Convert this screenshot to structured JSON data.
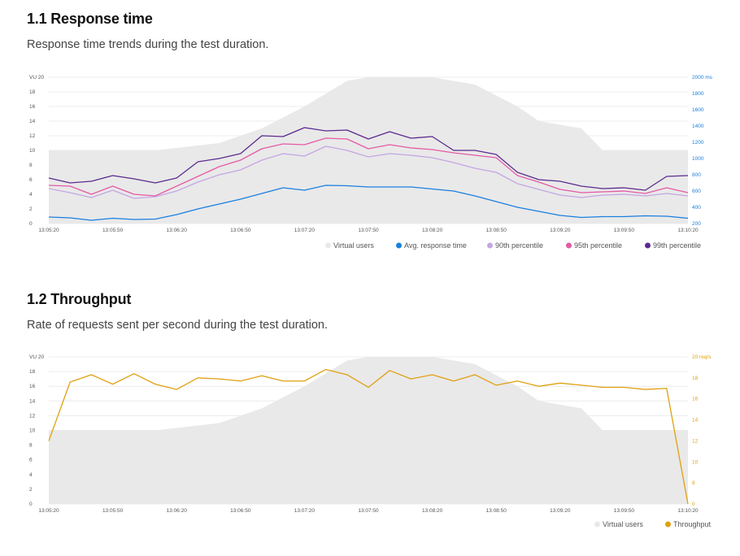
{
  "sections": [
    {
      "title": "1.1 Response time",
      "subtitle": "Response time trends during the test duration."
    },
    {
      "title": "1.2 Throughput",
      "subtitle": "Rate of requests sent per second during the test duration."
    }
  ],
  "colors": {
    "vus": "#e9e9e9",
    "grid": "#ececec",
    "avg": "#1a7fe0",
    "p90": "#c4a6e3",
    "p95": "#e45aa6",
    "p99": "#5b2a8e",
    "throughput": "#e0a010",
    "right_axis_rt": "#1a7fe0",
    "right_axis_tp": "#e0a010"
  },
  "chart_data": [
    {
      "type": "line",
      "x_ticks": [
        "13:05:20",
        "13:05:50",
        "13:06:20",
        "13:06:50",
        "13:07:20",
        "13:07:50",
        "13:08:20",
        "13:08:50",
        "13:09:20",
        "13:09:50",
        "13:10:20"
      ],
      "left_axis": {
        "ticks": [
          "0",
          "2",
          "4",
          "6",
          "8",
          "10",
          "12",
          "14",
          "16",
          "18",
          "VU 20"
        ],
        "ylim": [
          0,
          20
        ]
      },
      "right_axis": {
        "ticks": [
          "200",
          "400",
          "600",
          "800",
          "1000",
          "1200",
          "1400",
          "1600",
          "1800",
          "2000 ms"
        ],
        "ylim": [
          200,
          2000
        ]
      },
      "x_index_max": 30,
      "vus": {
        "name": "Virtual users",
        "x": [
          0,
          5,
          8,
          10,
          12,
          14,
          15,
          18,
          20,
          22,
          23,
          25,
          26,
          30
        ],
        "values": [
          10,
          10,
          11,
          13,
          16,
          19.5,
          20,
          20,
          19,
          16,
          14,
          13,
          10,
          10
        ]
      },
      "series": [
        {
          "name": "Avg. response time",
          "color_key": "avg",
          "values": [
            280,
            270,
            240,
            265,
            250,
            255,
            310,
            380,
            440,
            500,
            570,
            640,
            610,
            670,
            665,
            650,
            650,
            650,
            625,
            600,
            540,
            470,
            400,
            350,
            300,
            275,
            285,
            285,
            295,
            290,
            265
          ]
        },
        {
          "name": "90th percentile",
          "color_key": "p90",
          "values": [
            630,
            580,
            520,
            610,
            510,
            530,
            600,
            710,
            800,
            860,
            980,
            1060,
            1030,
            1150,
            1100,
            1020,
            1060,
            1040,
            1010,
            950,
            880,
            830,
            690,
            620,
            550,
            520,
            550,
            560,
            540,
            570,
            540
          ]
        },
        {
          "name": "95th percentile",
          "color_key": "p95",
          "values": [
            670,
            660,
            560,
            660,
            560,
            540,
            660,
            780,
            900,
            980,
            1120,
            1180,
            1170,
            1250,
            1240,
            1120,
            1170,
            1130,
            1110,
            1070,
            1040,
            1010,
            790,
            710,
            620,
            580,
            590,
            600,
            570,
            640,
            580
          ]
        },
        {
          "name": "99th percentile",
          "color_key": "p99",
          "values": [
            760,
            700,
            720,
            790,
            750,
            700,
            760,
            960,
            1000,
            1060,
            1280,
            1270,
            1380,
            1340,
            1350,
            1240,
            1330,
            1250,
            1270,
            1100,
            1100,
            1050,
            830,
            740,
            720,
            660,
            630,
            640,
            610,
            780,
            790
          ]
        }
      ],
      "legend": [
        "Virtual users",
        "Avg. response time",
        "90th percentile",
        "95th percentile",
        "99th percentile"
      ]
    },
    {
      "type": "line",
      "x_ticks": [
        "13:05:20",
        "13:05:50",
        "13:06:20",
        "13:06:50",
        "13:07:20",
        "13:07:50",
        "13:08:20",
        "13:08:50",
        "13:09:20",
        "13:09:50",
        "13:10:20"
      ],
      "left_axis": {
        "ticks": [
          "0",
          "2",
          "4",
          "6",
          "8",
          "10",
          "12",
          "14",
          "16",
          "18",
          "VU 20"
        ],
        "ylim": [
          0,
          20
        ]
      },
      "right_axis": {
        "ticks": [
          "0",
          "8",
          "10",
          "12",
          "14",
          "16",
          "18",
          "20 req/s"
        ],
        "values": [
          0,
          8,
          10,
          12,
          14,
          16,
          18,
          20
        ]
      },
      "x_index_max": 30,
      "vus": {
        "name": "Virtual users",
        "x": [
          0,
          5,
          8,
          10,
          12,
          14,
          15,
          18,
          20,
          22,
          23,
          25,
          26,
          30
        ],
        "values": [
          10,
          10,
          11,
          13,
          16,
          19.5,
          20,
          20,
          19,
          16,
          14,
          13,
          10,
          10
        ]
      },
      "series": [
        {
          "name": "Throughput",
          "color_key": "throughput",
          "values": [
            12.0,
            17.6,
            18.3,
            17.4,
            18.4,
            17.4,
            16.9,
            18.0,
            17.9,
            17.7,
            18.2,
            17.7,
            17.7,
            18.8,
            18.3,
            17.1,
            18.7,
            17.9,
            18.3,
            17.7,
            18.3,
            17.3,
            17.7,
            17.2,
            17.5,
            17.3,
            17.1,
            17.1,
            16.9,
            17.0,
            0.0
          ]
        }
      ],
      "legend": [
        "Virtual users",
        "Throughput"
      ]
    }
  ]
}
